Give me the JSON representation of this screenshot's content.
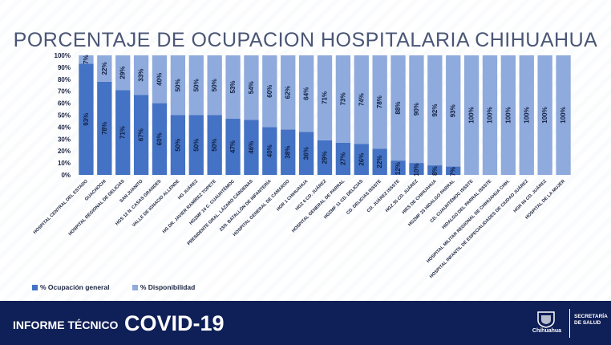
{
  "page": {
    "title": "PORCENTAJE DE OCUPACION HOSPITALARIA CHIHUAHUA"
  },
  "legend": {
    "ocupacion": "% Ocupación general",
    "disponibilidad": "% Disponibilidad"
  },
  "colors": {
    "ocupacion": "#4472c4",
    "disponibilidad": "#8faadc",
    "footer": "#0f1f57"
  },
  "footer": {
    "informe": "INFORME TÉCNICO",
    "covid": "COVID-19",
    "logo_text": "Chihuahua",
    "sec_line1": "SECRETARÍA",
    "sec_line2": "DE SALUD"
  },
  "chart_data": {
    "type": "bar",
    "stacked": true,
    "title": "PORCENTAJE DE OCUPACION HOSPITALARIA CHIHUAHUA",
    "ylim": [
      0,
      100
    ],
    "yticks": [
      "0%",
      "10%",
      "20%",
      "30%",
      "40%",
      "50%",
      "60%",
      "70%",
      "80%",
      "90%",
      "100%"
    ],
    "legend_position": "bottom-left",
    "grid": false,
    "categories": [
      "HOSPITAL CENTRAL DEL ESTADO",
      "GUACHOCHI",
      "HOSPITAL REGIONAL DE DELICIAS",
      "SAN JUANITO",
      "HGS 12 N. CASAS GRANDES",
      "VALLE DE IGNACIO ALLENDE",
      "HG JUÁREZ",
      "HG DR. JAVIER RAMÍREZ TOPETE",
      "HGZMF 16 C. CUAUHTÉMOC",
      "PRESIDENTE GRAL. LÁZARO CÁRDENAS",
      "23/0. BATALLÓN DE INFANTERÍA",
      "HOSPITAL GENERAL DE CAMARGO",
      "HGR 1 CHIHUAHUA",
      "HGZ 6 CD. JUÁREZ",
      "HOSPITAL GENERAL DE PARRAL",
      "HGZMF 11 CD. DELICIAS",
      "CD. DELICIAS ISSSTE",
      "CD. JUÁREZ ISSSTE",
      "HGZ 35 CD. JUÁREZ",
      "HIES DE CHIHUAHUA",
      "HGZMF 23 HIDALGO PARRAL",
      "CD. CUAUHTÉMOC ISSSTE",
      "HIDALGO DEL PARRAL ISSSTE",
      "HOSPITAL MILITAR REGIONAL DE CHIHUAHUA CHIH.",
      "HOSPITAL INFANTIL DE ESPECIALIDADES DE CIUDAD JUÁREZ",
      "HGR 66 CD. JUÁREZ",
      "HOSPITAL DE LA MUJER"
    ],
    "series": [
      {
        "name": "% Ocupación general",
        "values": [
          93,
          78,
          71,
          67,
          60,
          50,
          50,
          50,
          47,
          46,
          40,
          38,
          36,
          29,
          27,
          26,
          22,
          12,
          10,
          8,
          7,
          0,
          0,
          0,
          0,
          0,
          0
        ],
        "labels": [
          "93%",
          "78%",
          "71%",
          "67%",
          "60%",
          "50%",
          "50%",
          "50%",
          "47%",
          "46%",
          "40%",
          "38%",
          "36%",
          "29%",
          "27%",
          "26%",
          "22%",
          "12%",
          "10%",
          "8%",
          "7%",
          "",
          "",
          "",
          "",
          "",
          ""
        ]
      },
      {
        "name": "% Disponibilidad",
        "values": [
          7,
          22,
          29,
          33,
          40,
          50,
          50,
          50,
          53,
          54,
          60,
          62,
          64,
          71,
          73,
          74,
          78,
          88,
          90,
          92,
          93,
          100,
          100,
          100,
          100,
          100,
          100
        ],
        "labels": [
          "7%",
          "22%",
          "29%",
          "33%",
          "40%",
          "50%",
          "50%",
          "50%",
          "53%",
          "54%",
          "60%",
          "62%",
          "64%",
          "71%",
          "73%",
          "74%",
          "78%",
          "88%",
          "90%",
          "92%",
          "93%",
          "100%",
          "100%",
          "100%",
          "100%",
          "100%",
          "100%"
        ]
      }
    ]
  }
}
